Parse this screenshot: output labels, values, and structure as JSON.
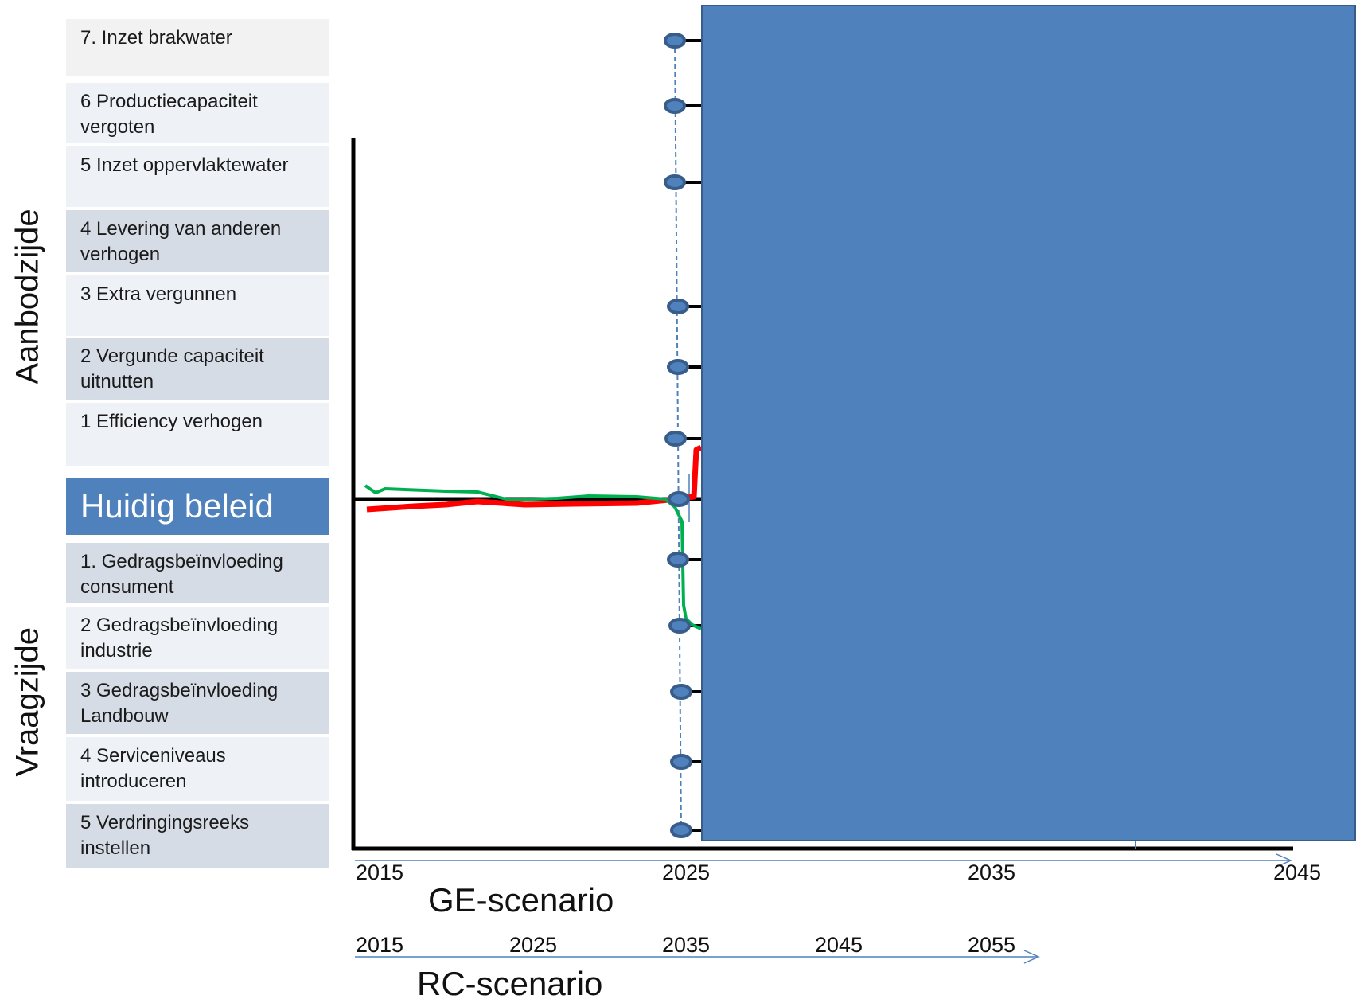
{
  "supply_label": "Aanbodzijde",
  "demand_label": "Vraagzijde",
  "supply_measures": [
    "7. Inzet brakwater",
    "6 Productiecapaciteit vergoten",
    "5 Inzet oppervlaktewater",
    "4 Levering van anderen verhogen",
    "3 Extra vergunnen",
    "2 Vergunde capaciteit uitnutten",
    "1 Efficiency verhogen"
  ],
  "current_policy": "Huidig beleid",
  "demand_measures": [
    "1. Gedragsbeïnvloeding consument",
    "2 Gedragsbeïnvloeding industrie",
    "3 Gedragsbeïnvloeding Landbouw",
    "4 Serviceniveaus introduceren",
    "5 Verdringingsreeks instellen"
  ],
  "ge_axis": {
    "ticks": [
      "2015",
      "2025",
      "2035",
      "2045"
    ],
    "label": "GE-scenario"
  },
  "rc_axis": {
    "ticks": [
      "2015",
      "2025",
      "2035",
      "2045",
      "2055"
    ],
    "label": "RC-scenario"
  },
  "colors": {
    "box_blue": "#4f81bd",
    "red_line": "#ff0000",
    "green_line": "#00b050",
    "node": "#4f81bd"
  }
}
